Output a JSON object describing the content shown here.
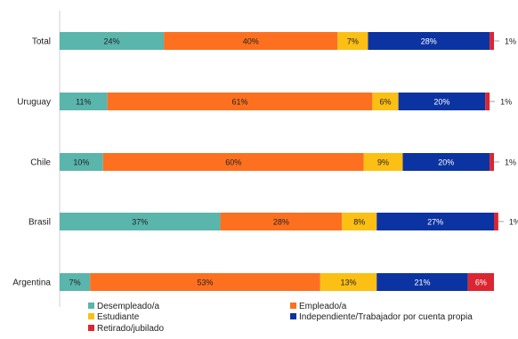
{
  "chart_data": {
    "type": "bar",
    "orientation": "horizontal",
    "stacked": true,
    "categories": [
      "Total",
      "Uruguay",
      "Chile",
      "Brasil",
      "Argentina"
    ],
    "series": [
      {
        "name": "Desempleado/a",
        "color": "#5ab5ac",
        "values": [
          24,
          11,
          10,
          37,
          7
        ]
      },
      {
        "name": "Empleado/a",
        "color": "#fd7020",
        "values": [
          40,
          61,
          60,
          28,
          53
        ]
      },
      {
        "name": "Estudiante",
        "color": "#fcbf14",
        "values": [
          7,
          6,
          9,
          8,
          13
        ]
      },
      {
        "name": "Independiente/Trabajador por cuenta propia",
        "color": "#0b33a1",
        "values": [
          28,
          20,
          20,
          27,
          21
        ]
      },
      {
        "name": "Retirado/jubilado",
        "color": "#db2631",
        "values": [
          1,
          1,
          1,
          1,
          6
        ]
      }
    ],
    "data_labels": [
      [
        "24%",
        "40%",
        "7%",
        "28%",
        "1%"
      ],
      [
        "11%",
        "61%",
        "6%",
        "20%",
        "1%"
      ],
      [
        "10%",
        "60%",
        "9%",
        "20%",
        "1%"
      ],
      [
        "37%",
        "28%",
        "8%",
        "27%",
        "1%"
      ],
      [
        "7%",
        "53%",
        "13%",
        "21%",
        "6%"
      ]
    ],
    "xlim": [
      0,
      100
    ],
    "grid": false,
    "legend_position": "bottom"
  }
}
